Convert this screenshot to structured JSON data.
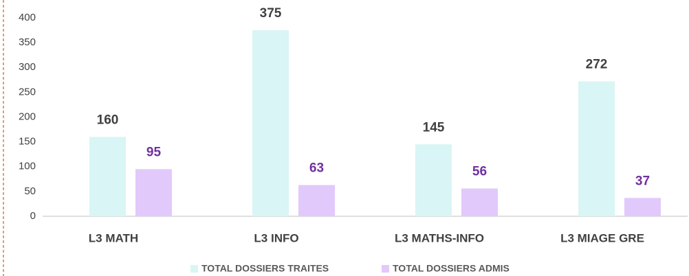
{
  "chart_data": {
    "type": "bar",
    "categories": [
      "L3 MATH",
      "L3 INFO",
      "L3 MATHS-INFO",
      "L3  MIAGE GRE"
    ],
    "series": [
      {
        "name": "TOTAL DOSSIERS TRAITES",
        "color": "#d9f5f5",
        "label_color": "#404040",
        "values": [
          160,
          375,
          145,
          272
        ]
      },
      {
        "name": "TOTAL DOSSIERS ADMIS",
        "color": "#e2c9fb",
        "label_color": "#7030a0",
        "values": [
          95,
          63,
          56,
          37
        ]
      }
    ],
    "ylim": [
      0,
      400
    ],
    "yticks": [
      0,
      50,
      100,
      150,
      200,
      250,
      300,
      350,
      400
    ],
    "grid": false,
    "legend": "bottom"
  }
}
